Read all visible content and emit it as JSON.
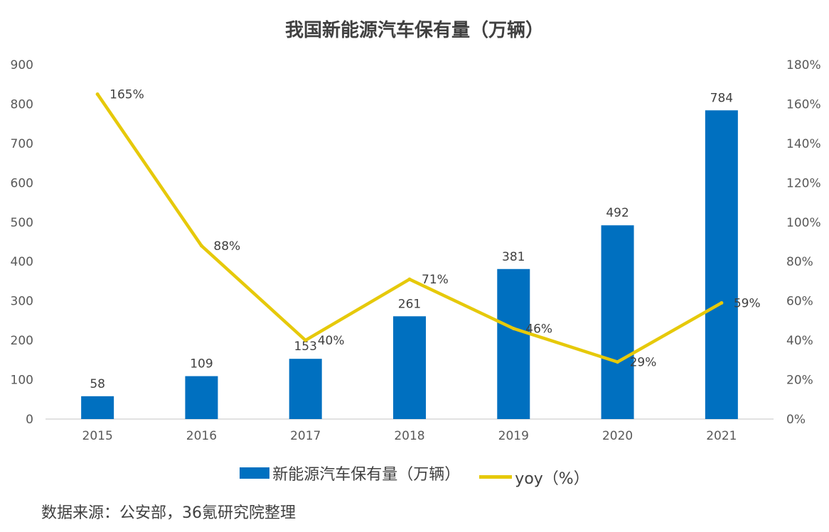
{
  "chart_data": {
    "type": "bar",
    "title": "我国新能源汽车保有量（万辆）",
    "categories": [
      "2015",
      "2016",
      "2017",
      "2018",
      "2019",
      "2020",
      "2021"
    ],
    "series": [
      {
        "name": "新能源汽车保有量（万辆）",
        "type": "bar",
        "axis": "left",
        "values": [
          58,
          109,
          153,
          261,
          381,
          492,
          784
        ],
        "labels": [
          "58",
          "109",
          "153",
          "261",
          "381",
          "492",
          "784"
        ],
        "color": "#0070C0"
      },
      {
        "name": "yoy（%）",
        "type": "line",
        "axis": "right",
        "values": [
          165,
          88,
          40,
          71,
          46,
          29,
          59
        ],
        "labels": [
          "165%",
          "88%",
          "40%",
          "71%",
          "46%",
          "29%",
          "59%"
        ],
        "color": "#E6C90A"
      }
    ],
    "y_left": {
      "ylim": [
        0,
        900
      ],
      "ticks": [
        "0",
        "100",
        "200",
        "300",
        "400",
        "500",
        "600",
        "700",
        "800",
        "900"
      ]
    },
    "y_right": {
      "ylim": [
        0,
        180
      ],
      "ticks": [
        "0%",
        "20%",
        "40%",
        "60%",
        "80%",
        "100%",
        "120%",
        "140%",
        "160%",
        "180%"
      ]
    },
    "grid": false,
    "legend_position": "bottom"
  },
  "source": "数据来源：公安部，36氪研究院整理"
}
